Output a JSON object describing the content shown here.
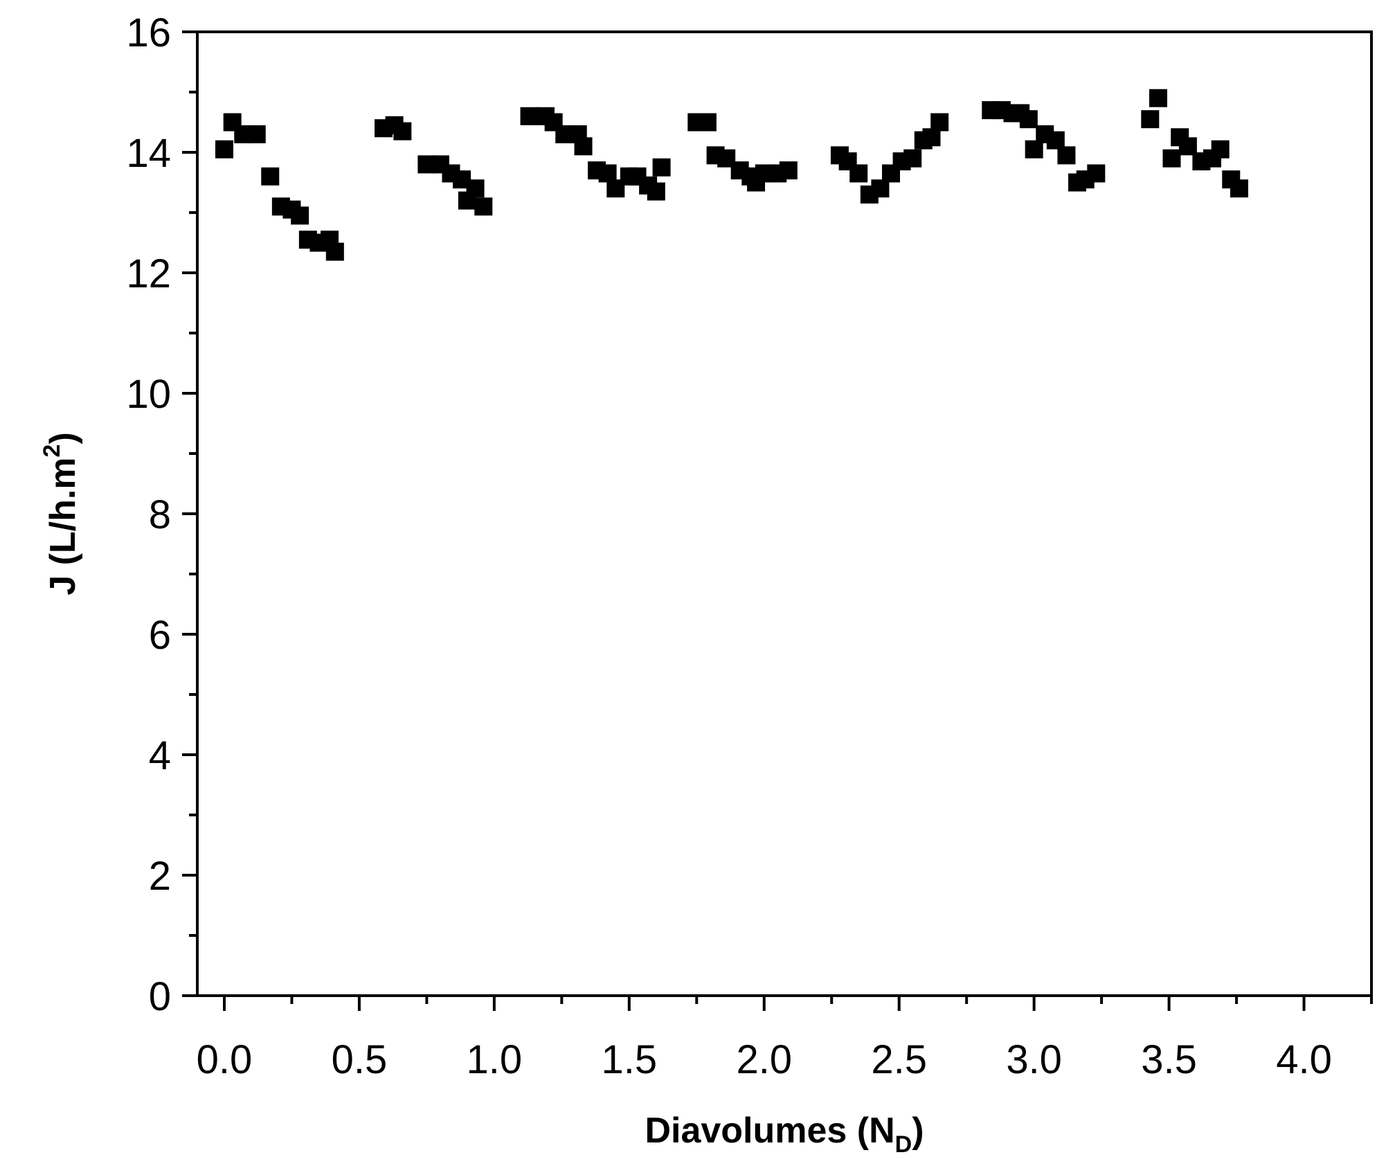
{
  "chart_data": {
    "type": "scatter",
    "title": "",
    "xlabel": "Diavolumes (N_D)",
    "xlabel_parts": {
      "main": "Diavolumes (N",
      "sub": "D",
      "close": ")"
    },
    "ylabel": "J (L/h.m^2)",
    "ylabel_parts": {
      "main": "J (L/h.m",
      "sup": "2",
      "close": ")"
    },
    "xlim": [
      -0.1,
      4.25
    ],
    "ylim": [
      0,
      16
    ],
    "xticks": [
      "0.0",
      "0.5",
      "1.0",
      "1.5",
      "2.0",
      "2.5",
      "3.0",
      "3.5",
      "4.0"
    ],
    "yticks": [
      "0",
      "2",
      "4",
      "6",
      "8",
      "10",
      "12",
      "14",
      "16"
    ],
    "grid": false,
    "marker": "square",
    "marker_color": "#000000",
    "series": [
      {
        "points": [
          [
            0.0,
            14.05
          ],
          [
            0.03,
            14.5
          ],
          [
            0.07,
            14.3
          ],
          [
            0.12,
            14.3
          ],
          [
            0.17,
            13.6
          ],
          [
            0.21,
            13.1
          ],
          [
            0.25,
            13.05
          ],
          [
            0.28,
            12.95
          ],
          [
            0.31,
            12.55
          ],
          [
            0.35,
            12.5
          ],
          [
            0.39,
            12.55
          ],
          [
            0.41,
            12.35
          ],
          [
            0.59,
            14.4
          ],
          [
            0.63,
            14.45
          ],
          [
            0.66,
            14.35
          ],
          [
            0.75,
            13.8
          ],
          [
            0.8,
            13.8
          ],
          [
            0.84,
            13.65
          ],
          [
            0.88,
            13.55
          ],
          [
            0.9,
            13.2
          ],
          [
            0.93,
            13.4
          ],
          [
            0.96,
            13.1
          ],
          [
            1.13,
            14.6
          ],
          [
            1.19,
            14.6
          ],
          [
            1.22,
            14.5
          ],
          [
            1.26,
            14.3
          ],
          [
            1.31,
            14.3
          ],
          [
            1.33,
            14.1
          ],
          [
            1.38,
            13.7
          ],
          [
            1.42,
            13.65
          ],
          [
            1.45,
            13.4
          ],
          [
            1.5,
            13.6
          ],
          [
            1.53,
            13.6
          ],
          [
            1.57,
            13.45
          ],
          [
            1.6,
            13.35
          ],
          [
            1.62,
            13.75
          ],
          [
            1.75,
            14.5
          ],
          [
            1.79,
            14.5
          ],
          [
            1.82,
            13.95
          ],
          [
            1.86,
            13.9
          ],
          [
            1.91,
            13.7
          ],
          [
            1.95,
            13.6
          ],
          [
            1.97,
            13.5
          ],
          [
            2.0,
            13.65
          ],
          [
            2.05,
            13.65
          ],
          [
            2.09,
            13.7
          ],
          [
            2.28,
            13.95
          ],
          [
            2.31,
            13.85
          ],
          [
            2.35,
            13.65
          ],
          [
            2.39,
            13.3
          ],
          [
            2.43,
            13.4
          ],
          [
            2.47,
            13.65
          ],
          [
            2.51,
            13.85
          ],
          [
            2.55,
            13.9
          ],
          [
            2.59,
            14.2
          ],
          [
            2.62,
            14.25
          ],
          [
            2.65,
            14.5
          ],
          [
            2.84,
            14.7
          ],
          [
            2.88,
            14.7
          ],
          [
            2.92,
            14.65
          ],
          [
            2.95,
            14.65
          ],
          [
            2.98,
            14.55
          ],
          [
            3.0,
            14.05
          ],
          [
            3.04,
            14.3
          ],
          [
            3.08,
            14.2
          ],
          [
            3.12,
            13.95
          ],
          [
            3.16,
            13.5
          ],
          [
            3.19,
            13.55
          ],
          [
            3.23,
            13.65
          ],
          [
            3.43,
            14.55
          ],
          [
            3.46,
            14.9
          ],
          [
            3.51,
            13.9
          ],
          [
            3.54,
            14.25
          ],
          [
            3.57,
            14.1
          ],
          [
            3.62,
            13.85
          ],
          [
            3.66,
            13.9
          ],
          [
            3.69,
            14.05
          ],
          [
            3.73,
            13.55
          ],
          [
            3.76,
            13.4
          ]
        ]
      }
    ]
  }
}
